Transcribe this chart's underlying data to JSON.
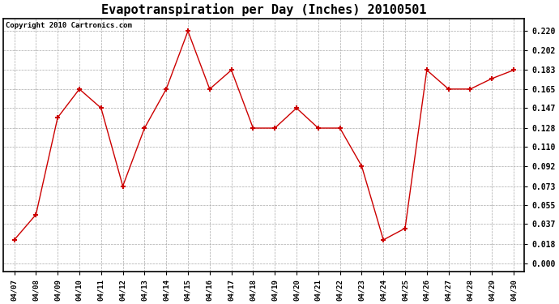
{
  "title": "Evapotranspiration per Day (Inches) 20100501",
  "copyright_text": "Copyright 2010 Cartronics.com",
  "x_labels": [
    "04/07",
    "04/08",
    "04/09",
    "04/10",
    "04/11",
    "04/12",
    "04/13",
    "04/14",
    "04/15",
    "04/16",
    "04/17",
    "04/18",
    "04/19",
    "04/20",
    "04/21",
    "04/22",
    "04/23",
    "04/24",
    "04/25",
    "04/26",
    "04/27",
    "04/28",
    "04/29",
    "04/30"
  ],
  "y_values": [
    0.022,
    0.046,
    0.138,
    0.165,
    0.147,
    0.073,
    0.128,
    0.165,
    0.22,
    0.165,
    0.183,
    0.128,
    0.128,
    0.147,
    0.128,
    0.128,
    0.092,
    0.022,
    0.033,
    0.183,
    0.165,
    0.165,
    0.175,
    0.183
  ],
  "line_color": "#cc0000",
  "marker": "+",
  "marker_size": 5,
  "marker_color": "#cc0000",
  "background_color": "#ffffff",
  "plot_bg_color": "#ffffff",
  "grid_color": "#aaaaaa",
  "y_ticks": [
    0.0,
    0.018,
    0.037,
    0.055,
    0.073,
    0.092,
    0.11,
    0.128,
    0.147,
    0.165,
    0.183,
    0.202,
    0.22
  ],
  "ylim": [
    -0.008,
    0.232
  ],
  "title_fontsize": 11,
  "tick_fontsize": 7,
  "xtick_fontsize": 6.5,
  "copyright_fontsize": 6.5,
  "ytick_fontweight": "bold"
}
